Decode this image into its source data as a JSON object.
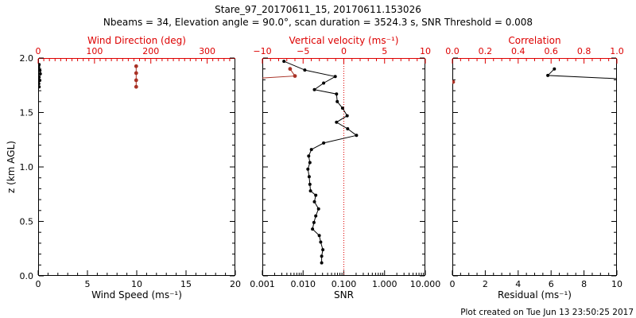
{
  "header": {
    "title": "Stare_97_20170611_15, 20170611.153026",
    "subtitle": "Nbeams = 34, Elevation angle = 90.0°, scan duration = 3524.3 s, SNR Threshold = 0.008"
  },
  "footer": {
    "credit": "Plot created on Tue Jun 13 23:50:25 2017"
  },
  "colors": {
    "axis_red": "#dd0000",
    "data_red": "#a93226",
    "black": "#000000",
    "background": "#ffffff"
  },
  "chart_data": [
    {
      "id": "wind",
      "type": "scatter",
      "x_bottom": {
        "label": "Wind Speed (ms⁻¹)",
        "range": [
          0,
          20
        ],
        "ticks": [
          0,
          5,
          10,
          15,
          20
        ],
        "tick_labels": [
          "0",
          "5",
          "10",
          "15",
          "20"
        ],
        "minor_step": 1
      },
      "x_top": {
        "label": "Wind Direction (deg)",
        "range": [
          0,
          350
        ],
        "ticks": [
          0,
          100,
          200,
          300
        ],
        "tick_labels": [
          "0",
          "100",
          "200",
          "300"
        ],
        "minor_step": 10
      },
      "y": {
        "label": "z (km AGL)",
        "range": [
          0,
          2
        ],
        "ticks": [
          0,
          0.5,
          1,
          1.5,
          2
        ],
        "tick_labels": [
          "0.0",
          "0.5",
          "1.0",
          "1.5",
          "2.0"
        ],
        "minor_step": 0.1,
        "show_labels": true
      },
      "series": [
        {
          "name": "wind-speed",
          "axis": "bottom",
          "color": "black",
          "marker": 2,
          "points": [
            [
              0.1,
              1.94
            ],
            [
              0.05,
              1.915
            ],
            [
              0.18,
              1.885
            ],
            [
              0.22,
              1.855
            ],
            [
              0.1,
              1.825
            ],
            [
              0.16,
              1.795
            ],
            [
              0.06,
              1.765
            ],
            [
              0.1,
              1.735
            ]
          ]
        },
        {
          "name": "wind-direction",
          "axis": "top",
          "color": "data_red",
          "marker": 2.4,
          "points": [
            [
              174,
              1.925
            ],
            [
              174,
              1.862
            ],
            [
              174,
              1.796
            ],
            [
              174,
              1.736
            ]
          ]
        }
      ]
    },
    {
      "id": "snr",
      "type": "scatter",
      "x_bottom": {
        "label": "SNR",
        "scale": "log",
        "range": [
          0.001,
          10
        ],
        "ticks": [
          0.001,
          0.01,
          0.1,
          1,
          10
        ],
        "tick_labels": [
          "0.001",
          "0.010",
          "0.100",
          "1.000",
          "10.000"
        ]
      },
      "x_top": {
        "label": "Vertical velocity (ms⁻¹)",
        "range": [
          -10,
          10
        ],
        "ticks": [
          -10,
          -5,
          0,
          5,
          10
        ],
        "tick_labels": [
          "−10",
          "−5",
          "0",
          "5",
          "10"
        ],
        "minor_step": 1
      },
      "y": {
        "range": [
          0,
          2
        ],
        "ticks": [
          0,
          0.5,
          1,
          1.5,
          2
        ],
        "tick_labels": [
          "",
          "",
          "",
          "",
          ""
        ],
        "minor_step": 0.1,
        "show_labels": false
      },
      "ref_line": {
        "axis": "bottom",
        "value": 0.1,
        "style": "dotted",
        "color": "axis_red"
      },
      "series": [
        {
          "name": "snr-profile",
          "axis": "bottom",
          "color": "black",
          "marker": 2,
          "points": [
            [
              0.0034,
              1.97
            ],
            [
              0.011,
              1.89
            ],
            [
              0.0615,
              1.83
            ],
            [
              0.032,
              1.77
            ],
            [
              0.019,
              1.71
            ],
            [
              0.066,
              1.67
            ],
            [
              0.069,
              1.6
            ],
            [
              0.093,
              1.54
            ],
            [
              0.121,
              1.47
            ],
            [
              0.066,
              1.41
            ],
            [
              0.124,
              1.35
            ],
            [
              0.204,
              1.29
            ],
            [
              0.032,
              1.22
            ],
            [
              0.016,
              1.16
            ],
            [
              0.0137,
              1.1
            ],
            [
              0.0147,
              1.04
            ],
            [
              0.0131,
              0.98
            ],
            [
              0.0141,
              0.91
            ],
            [
              0.0147,
              0.84
            ],
            [
              0.0152,
              0.78
            ],
            [
              0.0205,
              0.74
            ],
            [
              0.019,
              0.68
            ],
            [
              0.024,
              0.615
            ],
            [
              0.0205,
              0.55
            ],
            [
              0.0185,
              0.49
            ],
            [
              0.017,
              0.43
            ],
            [
              0.025,
              0.37
            ],
            [
              0.027,
              0.31
            ],
            [
              0.0305,
              0.24
            ],
            [
              0.0285,
              0.18
            ],
            [
              0.0285,
              0.12
            ]
          ]
        },
        {
          "name": "vertical-velocity",
          "axis": "top",
          "color": "data_red",
          "marker": 2.4,
          "points": [
            [
              -11.5,
              1.81
            ],
            [
              -6.0,
              1.835
            ],
            [
              -6.6,
              1.9
            ]
          ]
        }
      ]
    },
    {
      "id": "residual",
      "type": "scatter",
      "x_bottom": {
        "label": "Residual (ms⁻¹)",
        "range": [
          0,
          10
        ],
        "ticks": [
          0,
          2,
          4,
          6,
          8,
          10
        ],
        "tick_labels": [
          "0",
          "2",
          "4",
          "6",
          "8",
          "10"
        ],
        "minor_step": 0.5
      },
      "x_top": {
        "label": "Correlation",
        "range": [
          0,
          1
        ],
        "ticks": [
          0,
          0.2,
          0.4,
          0.6,
          0.8,
          1
        ],
        "tick_labels": [
          "0.0",
          "0.2",
          "0.4",
          "0.6",
          "0.8",
          "1.0"
        ],
        "minor_step": 0.05
      },
      "y": {
        "range": [
          0,
          2
        ],
        "ticks": [
          0,
          0.5,
          1,
          1.5,
          2
        ],
        "tick_labels": [
          "",
          "",
          "",
          "",
          ""
        ],
        "minor_step": 0.1,
        "show_labels": false
      },
      "series": [
        {
          "name": "residual-profile",
          "axis": "bottom",
          "color": "black",
          "marker": 2,
          "points": [
            [
              6.2,
              1.9
            ],
            [
              5.8,
              1.84
            ],
            [
              11.5,
              1.8
            ]
          ]
        },
        {
          "name": "correlation",
          "axis": "top",
          "color": "data_red",
          "marker": 2.4,
          "line": false,
          "points": [
            [
              0.005,
              1.78
            ]
          ]
        }
      ]
    }
  ]
}
